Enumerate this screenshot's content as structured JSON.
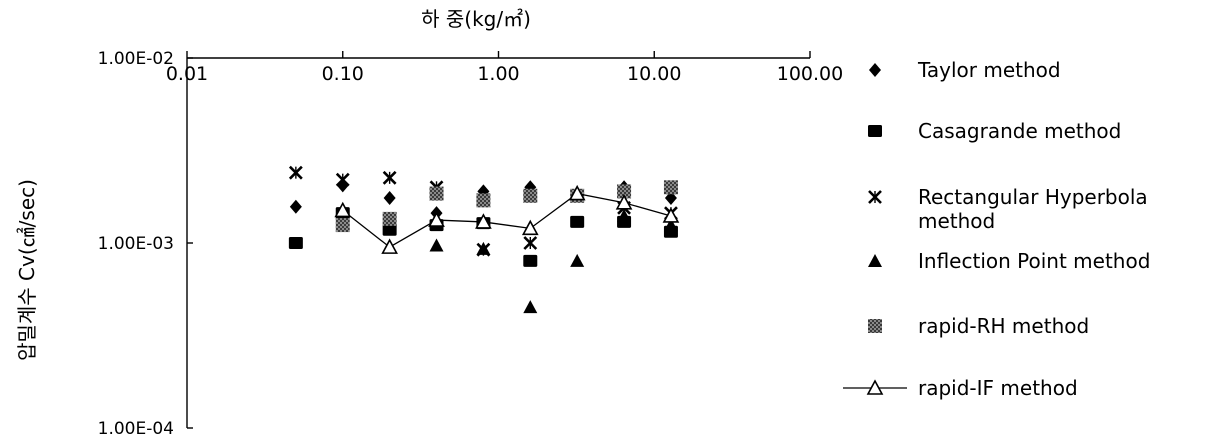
{
  "chart_data": {
    "type": "scatter",
    "x_axis": {
      "label": "하 중(kg/㎡)",
      "scale": "log",
      "range": [
        0.01,
        100
      ],
      "ticks": [
        {
          "value": 0.01,
          "label": "0.01"
        },
        {
          "value": 0.1,
          "label": "0.10"
        },
        {
          "value": 1,
          "label": "1.00"
        },
        {
          "value": 10,
          "label": "10.00"
        },
        {
          "value": 100,
          "label": "100.00"
        }
      ],
      "position": "top"
    },
    "y_axis": {
      "label": "압밀계수 Cv(㎠/sec)",
      "scale": "log",
      "range": [
        0.0001,
        0.01
      ],
      "ticks": [
        {
          "value": 0.01,
          "label": "1.00E-02"
        },
        {
          "value": 0.001,
          "label": "1.00E-03"
        },
        {
          "value": 0.0001,
          "label": "1.00E-04"
        }
      ]
    },
    "grid": false,
    "legend_position": "right",
    "series": [
      {
        "name": "Taylor method",
        "marker": "diamond",
        "color": "#000000",
        "line": false,
        "x": [
          0.05,
          0.1,
          0.2,
          0.4,
          0.8,
          1.6,
          3.2,
          6.4,
          12.8
        ],
        "y": [
          0.00157,
          0.00205,
          0.00175,
          0.00145,
          0.0019,
          0.002,
          0.00185,
          0.002,
          0.00175
        ]
      },
      {
        "name": "Casagrande method",
        "marker": "square",
        "color": "#000000",
        "line": false,
        "x": [
          0.05,
          0.1,
          0.2,
          0.4,
          0.8,
          1.6,
          3.2,
          6.4,
          12.8
        ],
        "y": [
          0.001,
          0.00145,
          0.00118,
          0.00125,
          0.00128,
          0.0008,
          0.0013,
          0.0013,
          0.00115
        ]
      },
      {
        "name": "Rectangular Hyperbola method",
        "marker": "x",
        "color": "#000000",
        "line": false,
        "x": [
          0.05,
          0.1,
          0.2,
          0.4,
          0.8,
          1.6,
          3.2,
          6.4,
          12.8
        ],
        "y": [
          0.0024,
          0.0022,
          0.00225,
          0.002,
          0.00092,
          0.001,
          0.0018,
          0.00155,
          0.00145
        ]
      },
      {
        "name": "Inflection Point method",
        "marker": "triangle",
        "color": "#000000",
        "line": false,
        "x": [
          0.2,
          0.4,
          0.8,
          1.6,
          3.2,
          6.4,
          12.8
        ],
        "y": [
          0.00095,
          0.00097,
          0.00093,
          0.00045,
          0.0008,
          0.0014,
          0.00125
        ]
      },
      {
        "name": "rapid-RH method",
        "marker": "hatched-square",
        "color": "#555555",
        "line": false,
        "x": [
          0.1,
          0.2,
          0.4,
          0.8,
          1.6,
          3.2,
          6.4,
          12.8
        ],
        "y": [
          0.00125,
          0.00135,
          0.00185,
          0.0017,
          0.0018,
          0.0018,
          0.0019,
          0.002
        ]
      },
      {
        "name": "rapid-IF method",
        "marker": "open-triangle",
        "color": "#000000",
        "line": true,
        "x": [
          0.1,
          0.2,
          0.4,
          0.8,
          1.6,
          3.2,
          6.4,
          12.8
        ],
        "y": [
          0.0015,
          0.00095,
          0.00133,
          0.0013,
          0.0012,
          0.00185,
          0.00165,
          0.0014
        ]
      }
    ]
  }
}
